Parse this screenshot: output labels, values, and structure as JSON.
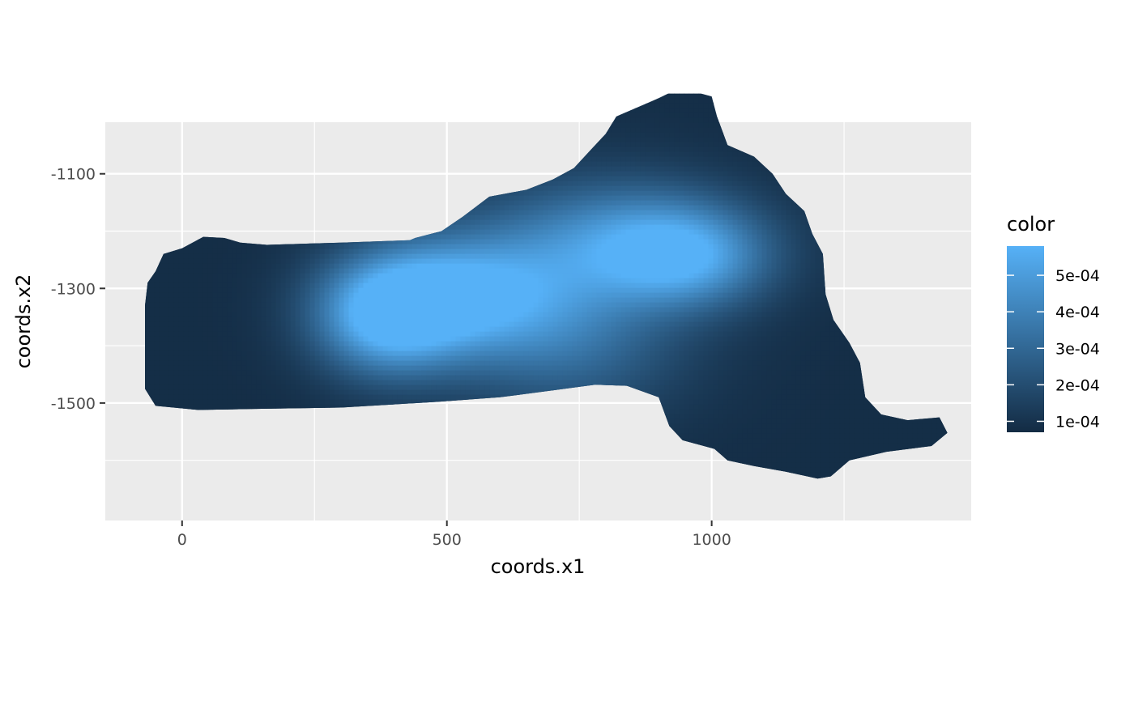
{
  "chart_data": {
    "type": "heatmap",
    "title": "",
    "xlabel": "coords.x1",
    "ylabel": "coords.x2",
    "xlim": [
      -145,
      1490
    ],
    "ylim": [
      -1705,
      -1010
    ],
    "x_major_ticks": [
      0,
      500,
      1000
    ],
    "x_minor_ticks": [
      250,
      750,
      1250
    ],
    "y_major_ticks": [
      -1100,
      -1300,
      -1500
    ],
    "y_minor_ticks": [
      -1000,
      -1200,
      -1400,
      -1600
    ],
    "x_tick_labels": [
      "0",
      "500",
      "1000"
    ],
    "y_tick_labels": [
      "-1100",
      "-1300",
      "-1500"
    ],
    "grid": true,
    "background": "#ebebeb",
    "region_outline": [
      [
        -70,
        -1475
      ],
      [
        -70,
        -1330
      ],
      [
        -65,
        -1290
      ],
      [
        -50,
        -1270
      ],
      [
        -35,
        -1240
      ],
      [
        0,
        -1230
      ],
      [
        40,
        -1210
      ],
      [
        80,
        -1212
      ],
      [
        110,
        -1220
      ],
      [
        160,
        -1224
      ],
      [
        300,
        -1220
      ],
      [
        430,
        -1216
      ],
      [
        440,
        -1212
      ],
      [
        490,
        -1200
      ],
      [
        530,
        -1175
      ],
      [
        580,
        -1140
      ],
      [
        650,
        -1128
      ],
      [
        700,
        -1110
      ],
      [
        740,
        -1090
      ],
      [
        770,
        -1060
      ],
      [
        800,
        -1030
      ],
      [
        820,
        -1000
      ],
      [
        870,
        -980
      ],
      [
        900,
        -968
      ],
      [
        940,
        -950
      ],
      [
        1000,
        -965
      ],
      [
        1010,
        -1000
      ],
      [
        1030,
        -1050
      ],
      [
        1080,
        -1070
      ],
      [
        1115,
        -1100
      ],
      [
        1140,
        -1135
      ],
      [
        1175,
        -1165
      ],
      [
        1190,
        -1205
      ],
      [
        1210,
        -1240
      ],
      [
        1215,
        -1310
      ],
      [
        1230,
        -1355
      ],
      [
        1260,
        -1395
      ],
      [
        1280,
        -1430
      ],
      [
        1290,
        -1490
      ],
      [
        1320,
        -1520
      ],
      [
        1370,
        -1530
      ],
      [
        1430,
        -1525
      ],
      [
        1445,
        -1552
      ],
      [
        1415,
        -1575
      ],
      [
        1330,
        -1585
      ],
      [
        1260,
        -1600
      ],
      [
        1225,
        -1628
      ],
      [
        1200,
        -1632
      ],
      [
        1140,
        -1620
      ],
      [
        1080,
        -1610
      ],
      [
        1030,
        -1600
      ],
      [
        1005,
        -1580
      ],
      [
        945,
        -1565
      ],
      [
        920,
        -1540
      ],
      [
        900,
        -1490
      ],
      [
        840,
        -1470
      ],
      [
        780,
        -1468
      ],
      [
        700,
        -1478
      ],
      [
        600,
        -1490
      ],
      [
        480,
        -1498
      ],
      [
        300,
        -1508
      ],
      [
        150,
        -1510
      ],
      [
        30,
        -1512
      ],
      [
        -50,
        -1505
      ]
    ],
    "hotspots": [
      {
        "x": 385,
        "y": -1353,
        "value": 0.00056,
        "spread_x": 95,
        "spread_y": 70
      },
      {
        "x": 490,
        "y": -1310,
        "value": 0.00041,
        "spread_x": 130,
        "spread_y": 65
      },
      {
        "x": 620,
        "y": -1318,
        "value": 0.00031,
        "spread_x": 150,
        "spread_y": 90
      },
      {
        "x": 955,
        "y": -1248,
        "value": 0.00046,
        "spread_x": 110,
        "spread_y": 60
      },
      {
        "x": 850,
        "y": -1210,
        "value": 0.00036,
        "spread_x": 150,
        "spread_y": 70
      },
      {
        "x": 760,
        "y": -1420,
        "value": 0.00019,
        "spread_x": 140,
        "spread_y": 80
      },
      {
        "x": 700,
        "y": -1300,
        "value": 0.0002,
        "spread_x": 200,
        "spread_y": 140
      }
    ],
    "base_value": 8e-05,
    "value_range": [
      7e-05,
      0.00058
    ],
    "colorscale": {
      "low": "#132b43",
      "high": "#56b1f7"
    },
    "legend": {
      "title": "color",
      "position": "right",
      "breaks": [
        0.0001,
        0.0002,
        0.0003,
        0.0004,
        0.0005
      ],
      "labels": [
        "1e-04",
        "2e-04",
        "3e-04",
        "4e-04",
        "5e-04"
      ]
    }
  }
}
